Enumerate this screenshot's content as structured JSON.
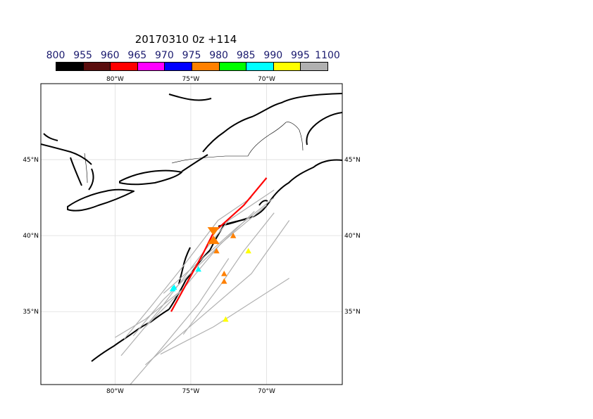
{
  "title": "20170310 0z +114",
  "colorbar": {
    "labels": [
      "800",
      "955",
      "960",
      "965",
      "970",
      "975",
      "980",
      "985",
      "990",
      "995",
      "1100"
    ],
    "colors": [
      "#000000",
      "#5a0d0d",
      "#ff0000",
      "#ff00ff",
      "#0000ff",
      "#ff8000",
      "#00ff00",
      "#00ffff",
      "#ffff00",
      "#b0b0b0"
    ]
  },
  "axes": {
    "top_lon_labels": [
      "80°W",
      "75°W",
      "70°W"
    ],
    "bottom_lon_labels": [
      "80°W",
      "75°W",
      "70°W"
    ],
    "left_lat_labels": [
      "45°N",
      "40°N",
      "35°N"
    ],
    "right_lat_labels": [
      "45°N",
      "40°N",
      "35°N"
    ],
    "lon_ticks": [
      -80,
      -75,
      -70
    ],
    "lat_ticks": [
      45,
      40,
      35
    ],
    "lon_range": [
      -84.9,
      -65.0
    ],
    "lat_range": [
      30.2,
      50.0
    ],
    "grid": true
  },
  "map_features": {
    "coastline_color": "#000000",
    "track_color": "#b0b0b0",
    "main_track_color": "#ff0000"
  },
  "chart_data": {
    "type": "scatter",
    "ensemble_tracks": [
      [
        [
          -79.4,
          33.2
        ],
        [
          -77.5,
          35.5
        ],
        [
          -75.5,
          38.0
        ],
        [
          -73.2,
          41.0
        ],
        [
          -71.0,
          42.5
        ]
      ],
      [
        [
          -79.6,
          32.1
        ],
        [
          -77.0,
          35.2
        ],
        [
          -74.5,
          38.5
        ],
        [
          -72.5,
          41.0
        ],
        [
          -69.5,
          43.0
        ]
      ],
      [
        [
          -76.8,
          36.2
        ],
        [
          -75.0,
          37.8
        ],
        [
          -72.0,
          40.5
        ],
        [
          -69.5,
          42.5
        ]
      ],
      [
        [
          -78.0,
          34.0
        ],
        [
          -75.5,
          36.5
        ],
        [
          -73.0,
          39.5
        ],
        [
          -70.0,
          42.0
        ]
      ],
      [
        [
          -78.8,
          33.4
        ],
        [
          -76.8,
          35.8
        ],
        [
          -74.0,
          38.5
        ],
        [
          -70.8,
          41.6
        ]
      ],
      [
        [
          -75.5,
          33.5
        ],
        [
          -73.0,
          36.8
        ],
        [
          -71.5,
          39.0
        ],
        [
          -69.5,
          41.5
        ]
      ],
      [
        [
          -78.0,
          31.5
        ],
        [
          -74.5,
          34.5
        ],
        [
          -71.0,
          37.5
        ],
        [
          -68.5,
          41.0
        ]
      ],
      [
        [
          -77.0,
          32.2
        ],
        [
          -73.5,
          34.0
        ],
        [
          -68.5,
          37.2
        ]
      ],
      [
        [
          -79.0,
          30.2
        ],
        [
          -77.0,
          32.5
        ],
        [
          -74.5,
          35.5
        ],
        [
          -72.5,
          38.5
        ]
      ],
      [
        [
          -80.0,
          33.3
        ],
        [
          -78.0,
          34.5
        ],
        [
          -75.5,
          36.5
        ]
      ]
    ],
    "main_track": [
      [
        -76.3,
        35.0
      ],
      [
        -74.2,
        38.8
      ],
      [
        -73.5,
        40.2
      ],
      [
        -71.5,
        42.0
      ],
      [
        -70.0,
        43.8
      ]
    ],
    "markers": [
      {
        "lon": -73.5,
        "lat": 40.0,
        "color": "#ff8000",
        "size": 12
      },
      {
        "lon": -76.2,
        "lat": 36.5,
        "color": "#00ffff",
        "size": 6
      },
      {
        "lon": -76.1,
        "lat": 36.6,
        "color": "#00ffff",
        "size": 6
      },
      {
        "lon": -74.5,
        "lat": 37.8,
        "color": "#00ffff",
        "size": 6
      },
      {
        "lon": -73.3,
        "lat": 39.0,
        "color": "#ff8000",
        "size": 6
      },
      {
        "lon": -72.2,
        "lat": 40.0,
        "color": "#ff8000",
        "size": 6
      },
      {
        "lon": -72.8,
        "lat": 37.5,
        "color": "#ff8000",
        "size": 6
      },
      {
        "lon": -72.8,
        "lat": 37.0,
        "color": "#ff8000",
        "size": 6
      },
      {
        "lon": -71.2,
        "lat": 39.0,
        "color": "#ffff00",
        "size": 6
      },
      {
        "lon": -72.7,
        "lat": 34.5,
        "color": "#ffff00",
        "size": 6
      }
    ]
  }
}
